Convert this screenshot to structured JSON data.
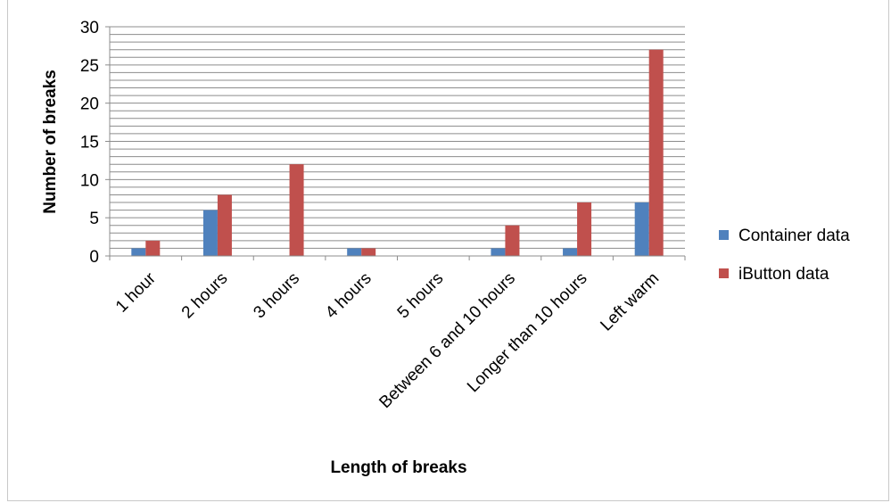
{
  "chart_data": {
    "type": "bar",
    "categories": [
      "1 hour",
      "2 hours",
      "3 hours",
      "4 hours",
      "5 hours",
      "Between 6 and 10 hours",
      "Longer than 10 hours",
      "Left warm"
    ],
    "series": [
      {
        "name": "Container data",
        "color": "#4f81bd",
        "values": [
          1,
          6,
          0,
          1,
          0,
          1,
          1,
          7
        ]
      },
      {
        "name": "iButton data",
        "color": "#c0504d",
        "values": [
          2,
          8,
          12,
          1,
          0,
          4,
          7,
          27
        ]
      }
    ],
    "title": "",
    "xlabel": "Length of breaks",
    "ylabel": "Number of breaks",
    "ylim": [
      0,
      30
    ],
    "yticks": [
      0,
      5,
      10,
      15,
      20,
      25,
      30
    ],
    "minor_gridline_step": 1,
    "grid": true,
    "legend": "right"
  }
}
